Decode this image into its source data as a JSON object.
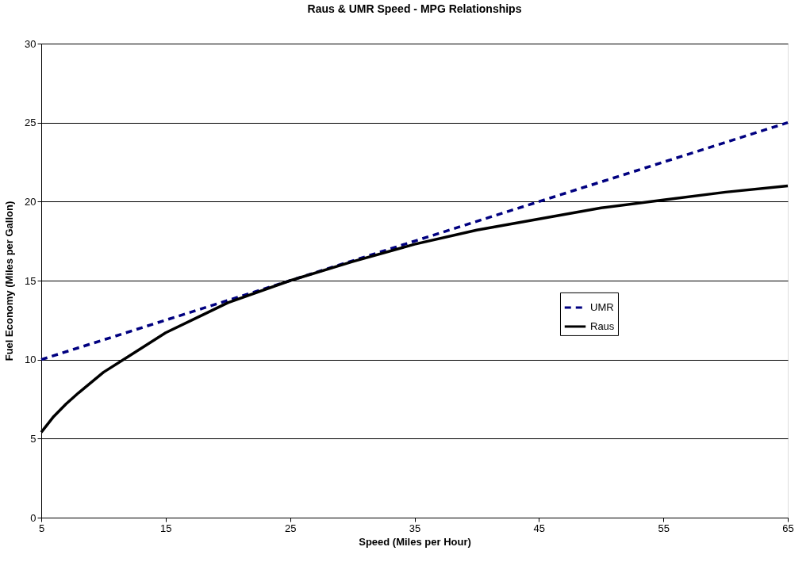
{
  "chart_data": {
    "type": "line",
    "title": "Raus & UMR Speed - MPG Relationships",
    "xlabel": "Speed (Miles per Hour)",
    "ylabel": "Fuel Economy (Miles per Gallon)",
    "xlim": [
      5,
      65
    ],
    "xticks": [
      5,
      15,
      25,
      35,
      45,
      55,
      65
    ],
    "ylim": [
      0,
      30
    ],
    "yticks": [
      0,
      5,
      10,
      15,
      20,
      25,
      30
    ],
    "grid": "y",
    "legend": "right",
    "marker": "none",
    "series": [
      {
        "name": "UMR",
        "color": "#000080",
        "line_style": "dashed",
        "x": [
          5,
          65
        ],
        "values": [
          10,
          25
        ]
      },
      {
        "name": "Raus",
        "color": "#000000",
        "line_style": "solid",
        "x": [
          5,
          6,
          7,
          8,
          10,
          12,
          15,
          20,
          25,
          30,
          35,
          40,
          45,
          50,
          55,
          60,
          65
        ],
        "values": [
          5.4,
          6.4,
          7.2,
          7.9,
          9.2,
          10.2,
          11.7,
          13.6,
          15.0,
          16.2,
          17.3,
          18.2,
          18.9,
          19.6,
          20.1,
          20.6,
          21.0
        ]
      }
    ]
  }
}
